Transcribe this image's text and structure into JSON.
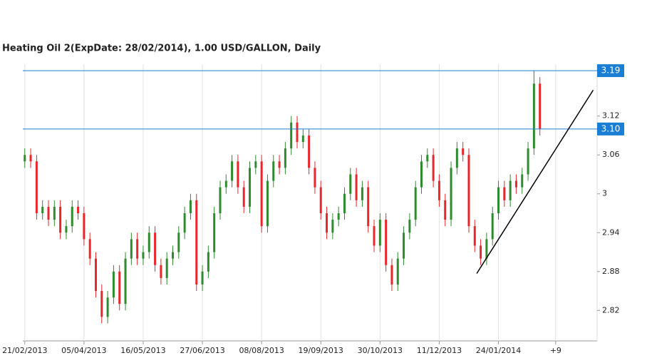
{
  "chart_data": {
    "type": "candlestick",
    "title": "Heating Oil 2(ExpDate: 28/02/2014), 1.00 USD/GALLON, Daily",
    "x": [
      0,
      3,
      6,
      9,
      12,
      15,
      18,
      21,
      24,
      27,
      30,
      33,
      36,
      39,
      42,
      45,
      48,
      51,
      54,
      57,
      60,
      63,
      66,
      69,
      72,
      75,
      78,
      81,
      84,
      87,
      90,
      93,
      96,
      99,
      102,
      105,
      108,
      111,
      114,
      117,
      120,
      123,
      126,
      129,
      132,
      135,
      138,
      141,
      144,
      147,
      150,
      153,
      156,
      159,
      162,
      165,
      168,
      171,
      174,
      177,
      180,
      183,
      186,
      189,
      192,
      195,
      198,
      201,
      204,
      207,
      210,
      213,
      216,
      219,
      222,
      225,
      228,
      231,
      234,
      237,
      240,
      243,
      246,
      249,
      252,
      255,
      258,
      261
    ],
    "open": [
      3.05,
      3.06,
      3.05,
      2.97,
      2.98,
      2.96,
      2.98,
      2.94,
      2.95,
      2.98,
      2.97,
      2.93,
      2.9,
      2.85,
      2.81,
      2.84,
      2.88,
      2.83,
      2.9,
      2.93,
      2.9,
      2.91,
      2.94,
      2.89,
      2.87,
      2.9,
      2.91,
      2.94,
      2.97,
      2.99,
      2.86,
      2.88,
      2.91,
      2.97,
      3.01,
      3.02,
      3.05,
      3.01,
      2.98,
      3.04,
      3.05,
      2.95,
      3.02,
      3.05,
      3.04,
      3.07,
      3.11,
      3.08,
      3.09,
      3.04,
      3.01,
      2.97,
      2.94,
      2.96,
      2.97,
      3.0,
      3.03,
      2.99,
      3.01,
      2.95,
      2.92,
      2.96,
      2.89,
      2.86,
      2.9,
      2.94,
      2.96,
      3.01,
      3.05,
      3.06,
      3.02,
      2.99,
      2.96,
      3.04,
      3.07,
      3.06,
      2.95,
      2.92,
      2.9,
      2.93,
      2.97,
      3.01,
      2.99,
      3.02,
      3.01,
      3.03,
      3.07,
      3.17
    ],
    "high": [
      3.07,
      3.07,
      3.06,
      2.99,
      2.99,
      2.99,
      2.99,
      2.96,
      2.99,
      2.99,
      2.98,
      2.94,
      2.91,
      2.86,
      2.85,
      2.89,
      2.89,
      2.91,
      2.94,
      2.94,
      2.92,
      2.95,
      2.95,
      2.9,
      2.91,
      2.92,
      2.95,
      2.98,
      3.0,
      3.0,
      2.89,
      2.92,
      2.98,
      3.02,
      3.03,
      3.06,
      3.06,
      3.02,
      3.05,
      3.06,
      3.06,
      3.03,
      3.06,
      3.06,
      3.08,
      3.12,
      3.12,
      3.1,
      3.1,
      3.05,
      3.02,
      2.98,
      2.97,
      2.98,
      3.01,
      3.04,
      3.04,
      3.02,
      3.02,
      2.96,
      2.97,
      2.97,
      2.9,
      2.91,
      2.95,
      2.97,
      3.02,
      3.06,
      3.07,
      3.07,
      3.03,
      3.0,
      3.05,
      3.08,
      3.08,
      3.07,
      2.96,
      2.93,
      2.94,
      2.98,
      3.02,
      3.02,
      3.03,
      3.03,
      3.04,
      3.08,
      3.19,
      3.18
    ],
    "low": [
      3.04,
      3.04,
      2.96,
      2.96,
      2.95,
      2.95,
      2.93,
      2.93,
      2.94,
      2.96,
      2.92,
      2.89,
      2.84,
      2.8,
      2.8,
      2.83,
      2.82,
      2.82,
      2.89,
      2.89,
      2.89,
      2.9,
      2.88,
      2.86,
      2.86,
      2.89,
      2.9,
      2.93,
      2.96,
      2.85,
      2.85,
      2.87,
      2.9,
      2.96,
      3.0,
      3.01,
      3.0,
      2.97,
      2.97,
      3.03,
      2.94,
      2.94,
      3.01,
      3.03,
      3.03,
      3.06,
      3.07,
      3.07,
      3.03,
      3.0,
      2.96,
      2.93,
      2.93,
      2.95,
      2.96,
      2.99,
      2.98,
      2.98,
      2.94,
      2.91,
      2.91,
      2.88,
      2.85,
      2.85,
      2.89,
      2.93,
      2.95,
      3.0,
      3.04,
      3.01,
      2.98,
      2.95,
      2.95,
      3.03,
      3.05,
      2.94,
      2.91,
      2.89,
      2.89,
      2.92,
      2.96,
      2.98,
      2.98,
      3.0,
      3.0,
      3.02,
      3.06,
      3.09
    ],
    "close": [
      3.06,
      3.05,
      2.97,
      2.98,
      2.96,
      2.98,
      2.94,
      2.95,
      2.98,
      2.97,
      2.93,
      2.9,
      2.85,
      2.81,
      2.84,
      2.88,
      2.83,
      2.9,
      2.93,
      2.9,
      2.91,
      2.94,
      2.89,
      2.87,
      2.9,
      2.91,
      2.94,
      2.97,
      2.99,
      2.86,
      2.88,
      2.91,
      2.97,
      3.01,
      3.02,
      3.05,
      3.01,
      2.98,
      3.04,
      3.05,
      2.95,
      3.02,
      3.05,
      3.04,
      3.07,
      3.11,
      3.08,
      3.09,
      3.04,
      3.01,
      2.97,
      2.94,
      2.96,
      2.97,
      3.0,
      3.03,
      2.99,
      3.01,
      2.95,
      2.92,
      2.96,
      2.89,
      2.86,
      2.9,
      2.94,
      2.96,
      3.01,
      3.05,
      3.06,
      3.02,
      2.99,
      2.96,
      3.04,
      3.07,
      3.06,
      2.95,
      2.92,
      2.9,
      2.93,
      2.97,
      3.01,
      2.99,
      3.02,
      3.01,
      3.03,
      3.07,
      3.17,
      3.1
    ],
    "up_color": "#2e8b2e",
    "down_color": "#e8262b",
    "xlim": [
      -1,
      290
    ],
    "xticks": [
      {
        "value": 0,
        "label": "21/02/2013"
      },
      {
        "value": 30,
        "label": "05/04/2013"
      },
      {
        "value": 60,
        "label": "16/05/2013"
      },
      {
        "value": 90,
        "label": "27/06/2013"
      },
      {
        "value": 120,
        "label": "08/08/2013"
      },
      {
        "value": 150,
        "label": "19/09/2013"
      },
      {
        "value": 180,
        "label": "30/10/2013"
      },
      {
        "value": 210,
        "label": "11/12/2013"
      },
      {
        "value": 240,
        "label": "24/01/2014"
      },
      {
        "value": 269,
        "label": "+9"
      }
    ],
    "ylim": [
      2.773,
      3.2
    ],
    "yticks": [
      2.82,
      2.88,
      2.94,
      3,
      3.06,
      3.12
    ],
    "levels": [
      {
        "value": 3.19,
        "label": "3.19"
      },
      {
        "value": 3.1,
        "label": "3.10"
      }
    ],
    "level_color": "#1a7fd4",
    "trendline": {
      "x": [
        229,
        288
      ],
      "y": [
        2.877,
        3.16
      ]
    },
    "grid": true
  }
}
